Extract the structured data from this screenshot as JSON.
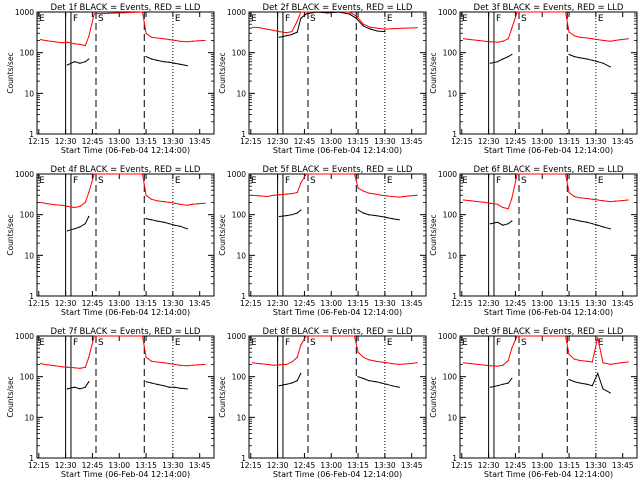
{
  "figure": {
    "xlabel": "Start Time (06-Feb-04 12:14:00)",
    "ylabel": "Counts/sec",
    "ytick_labels": [
      "1",
      "10",
      "100",
      "1000"
    ],
    "xtick_labels": [
      "12:15",
      "12:30",
      "12:45",
      "13:00",
      "13:15",
      "13:30",
      "13:45"
    ],
    "colors": {
      "events": "#000000",
      "lld": "#ff0000",
      "axes": "#000000",
      "background": "#ffffff"
    },
    "marker_letters": [
      "E",
      "F",
      "S",
      "E"
    ]
  },
  "chart_data": [
    {
      "type": "line",
      "title": "Det 1f BLACK = Events, RED = LLD",
      "scale": "log-y",
      "ylim": [
        1,
        1000
      ],
      "x": [
        "12:16",
        "12:20",
        "12:24",
        "12:28",
        "12:31",
        "12:35",
        "12:38",
        "12:41",
        "12:43",
        "12:46",
        "13:13",
        "13:15",
        "13:18",
        "13:21",
        "13:25",
        "13:28",
        "13:31",
        "13:34",
        "13:38",
        "13:41",
        "13:44",
        "13:48"
      ],
      "series": [
        {
          "name": "LLD",
          "values": [
            210,
            195,
            185,
            175,
            180,
            165,
            160,
            150,
            250,
            900,
            1000,
            300,
            240,
            230,
            220,
            210,
            200,
            190,
            185,
            190,
            195,
            200
          ]
        },
        {
          "name": "Events",
          "values": [
            null,
            null,
            null,
            null,
            50,
            60,
            55,
            60,
            70,
            null,
            null,
            80,
            70,
            65,
            60,
            58,
            55,
            52,
            48,
            null,
            null,
            null
          ]
        }
      ],
      "vlines": {
        "solid": [
          "12:30",
          "12:33"
        ],
        "dashed": [
          "12:47",
          "13:14"
        ],
        "dotted": [
          "12:14",
          "13:30"
        ]
      }
    },
    {
      "type": "line",
      "title": "Det 2f BLACK = Events, RED = LLD",
      "scale": "log-y",
      "ylim": [
        1,
        1000
      ],
      "x": [
        "12:16",
        "12:20",
        "12:24",
        "12:28",
        "12:31",
        "12:35",
        "12:38",
        "12:41",
        "12:43",
        "12:46",
        "12:52",
        "12:58",
        "13:04",
        "13:10",
        "13:14",
        "13:18",
        "13:22",
        "13:26",
        "13:30",
        "13:35",
        "13:40",
        "13:48"
      ],
      "series": [
        {
          "name": "LLD",
          "values": [
            420,
            410,
            380,
            350,
            330,
            310,
            330,
            600,
            1000,
            1000,
            1000,
            950,
            1000,
            1000,
            800,
            500,
            420,
            400,
            380,
            390,
            400,
            410
          ]
        },
        {
          "name": "Events",
          "values": [
            null,
            null,
            null,
            null,
            240,
            260,
            280,
            320,
            700,
            900,
            1000,
            950,
            1000,
            900,
            700,
            450,
            380,
            340,
            330,
            null,
            null,
            null
          ]
        }
      ],
      "vlines": {
        "solid": [
          "12:30",
          "12:33"
        ],
        "dashed": [
          "12:47",
          "13:14"
        ],
        "dotted": [
          "12:14",
          "13:30"
        ]
      }
    },
    {
      "type": "line",
      "title": "Det 3f BLACK = Events, RED = LLD",
      "scale": "log-y",
      "ylim": [
        1,
        1000
      ],
      "x": [
        "12:16",
        "12:20",
        "12:24",
        "12:28",
        "12:31",
        "12:35",
        "12:38",
        "12:41",
        "12:43",
        "12:46",
        "13:13",
        "13:15",
        "13:18",
        "13:21",
        "13:25",
        "13:28",
        "13:31",
        "13:34",
        "13:38",
        "13:41",
        "13:44",
        "13:48"
      ],
      "series": [
        {
          "name": "LLD",
          "values": [
            220,
            210,
            200,
            190,
            185,
            180,
            190,
            220,
            400,
            1000,
            1000,
            320,
            260,
            240,
            230,
            220,
            210,
            200,
            190,
            200,
            210,
            220
          ]
        },
        {
          "name": "Events",
          "values": [
            null,
            null,
            null,
            null,
            55,
            60,
            70,
            80,
            90,
            null,
            null,
            90,
            80,
            75,
            70,
            65,
            60,
            55,
            45,
            null,
            null,
            null
          ]
        }
      ],
      "vlines": {
        "solid": [
          "12:30",
          "12:33"
        ],
        "dashed": [
          "12:47",
          "13:14"
        ],
        "dotted": [
          "12:14",
          "13:30"
        ]
      }
    },
    {
      "type": "line",
      "title": "Det 4f BLACK = Events, RED = LLD",
      "scale": "log-y",
      "ylim": [
        1,
        1000
      ],
      "x": [
        "12:16",
        "12:20",
        "12:24",
        "12:28",
        "12:31",
        "12:35",
        "12:38",
        "12:41",
        "12:43",
        "12:46",
        "13:13",
        "13:15",
        "13:18",
        "13:21",
        "13:25",
        "13:28",
        "13:31",
        "13:34",
        "13:38",
        "13:41",
        "13:44",
        "13:48"
      ],
      "series": [
        {
          "name": "LLD",
          "values": [
            200,
            185,
            175,
            170,
            160,
            150,
            160,
            200,
            350,
            1000,
            1000,
            300,
            240,
            220,
            210,
            200,
            190,
            180,
            170,
            180,
            185,
            190
          ]
        },
        {
          "name": "Events",
          "values": [
            null,
            null,
            null,
            null,
            40,
            45,
            50,
            60,
            90,
            null,
            null,
            80,
            75,
            70,
            65,
            60,
            55,
            52,
            45,
            null,
            null,
            null
          ]
        }
      ],
      "vlines": {
        "solid": [
          "12:30",
          "12:33"
        ],
        "dashed": [
          "12:47",
          "13:14"
        ],
        "dotted": [
          "12:14",
          "13:30"
        ]
      }
    },
    {
      "type": "line",
      "title": "Det 5f BLACK = Events, RED = LLD",
      "scale": "log-y",
      "ylim": [
        1,
        1000
      ],
      "x": [
        "12:16",
        "12:20",
        "12:24",
        "12:28",
        "12:31",
        "12:35",
        "12:38",
        "12:41",
        "12:43",
        "12:46",
        "13:13",
        "13:15",
        "13:18",
        "13:21",
        "13:25",
        "13:28",
        "13:31",
        "13:34",
        "13:38",
        "13:41",
        "13:44",
        "13:48"
      ],
      "series": [
        {
          "name": "LLD",
          "values": [
            300,
            290,
            280,
            300,
            310,
            320,
            330,
            350,
            600,
            1000,
            1000,
            450,
            380,
            340,
            320,
            300,
            290,
            280,
            270,
            280,
            290,
            300
          ]
        },
        {
          "name": "Events",
          "values": [
            null,
            null,
            null,
            null,
            90,
            95,
            100,
            110,
            130,
            null,
            null,
            130,
            110,
            100,
            95,
            90,
            85,
            80,
            75,
            null,
            null,
            null
          ]
        }
      ],
      "vlines": {
        "solid": [
          "12:30",
          "12:33"
        ],
        "dashed": [
          "12:47",
          "13:14"
        ],
        "dotted": [
          "12:14",
          "13:30"
        ]
      }
    },
    {
      "type": "line",
      "title": "Det 6f BLACK = Events, RED = LLD",
      "scale": "log-y",
      "ylim": [
        1,
        1000
      ],
      "x": [
        "12:16",
        "12:20",
        "12:24",
        "12:28",
        "12:31",
        "12:35",
        "12:38",
        "12:41",
        "12:43",
        "12:46",
        "13:13",
        "13:15",
        "13:18",
        "13:21",
        "13:25",
        "13:28",
        "13:31",
        "13:34",
        "13:38",
        "13:41",
        "13:44",
        "13:48"
      ],
      "series": [
        {
          "name": "LLD",
          "values": [
            230,
            220,
            210,
            200,
            190,
            180,
            150,
            140,
            250,
            1000,
            1000,
            350,
            280,
            260,
            250,
            240,
            230,
            220,
            210,
            215,
            220,
            230
          ]
        },
        {
          "name": "Events",
          "values": [
            null,
            null,
            null,
            null,
            60,
            65,
            55,
            60,
            70,
            null,
            null,
            80,
            75,
            70,
            65,
            60,
            55,
            50,
            45,
            null,
            null,
            null
          ]
        }
      ],
      "vlines": {
        "solid": [
          "12:30",
          "12:33"
        ],
        "dashed": [
          "12:47",
          "13:14"
        ],
        "dotted": [
          "12:14",
          "13:30"
        ]
      }
    },
    {
      "type": "line",
      "title": "Det 7f BLACK = Events, RED = LLD",
      "scale": "log-y",
      "ylim": [
        1,
        1000
      ],
      "x": [
        "12:16",
        "12:20",
        "12:24",
        "12:28",
        "12:31",
        "12:35",
        "12:38",
        "12:41",
        "12:43",
        "12:46",
        "13:13",
        "13:15",
        "13:18",
        "13:21",
        "13:25",
        "13:28",
        "13:31",
        "13:34",
        "13:38",
        "13:41",
        "13:44",
        "13:48"
      ],
      "series": [
        {
          "name": "LLD",
          "values": [
            210,
            195,
            185,
            175,
            170,
            165,
            160,
            170,
            300,
            1000,
            1000,
            300,
            240,
            230,
            220,
            210,
            200,
            190,
            185,
            190,
            195,
            200
          ]
        },
        {
          "name": "Events",
          "values": [
            null,
            null,
            null,
            null,
            50,
            55,
            50,
            55,
            75,
            null,
            null,
            75,
            70,
            65,
            60,
            55,
            55,
            52,
            50,
            null,
            null,
            null
          ]
        }
      ],
      "vlines": {
        "solid": [
          "12:30",
          "12:33"
        ],
        "dashed": [
          "12:47",
          "13:14"
        ],
        "dotted": [
          "12:14",
          "13:30"
        ]
      }
    },
    {
      "type": "line",
      "title": "Det 8f BLACK = Events, RED = LLD",
      "scale": "log-y",
      "ylim": [
        1,
        1000
      ],
      "x": [
        "12:16",
        "12:20",
        "12:24",
        "12:28",
        "12:31",
        "12:35",
        "12:38",
        "12:41",
        "12:43",
        "12:46",
        "13:13",
        "13:15",
        "13:18",
        "13:21",
        "13:25",
        "13:28",
        "13:31",
        "13:34",
        "13:38",
        "13:41",
        "13:44",
        "13:48"
      ],
      "series": [
        {
          "name": "LLD",
          "values": [
            220,
            210,
            200,
            190,
            195,
            200,
            230,
            300,
            600,
            1000,
            1000,
            400,
            300,
            260,
            240,
            230,
            220,
            210,
            200,
            205,
            210,
            220
          ]
        },
        {
          "name": "Events",
          "values": [
            null,
            null,
            null,
            null,
            60,
            65,
            70,
            80,
            120,
            null,
            null,
            100,
            90,
            80,
            75,
            70,
            65,
            60,
            55,
            null,
            null,
            null
          ]
        }
      ],
      "vlines": {
        "solid": [
          "12:30",
          "12:33"
        ],
        "dashed": [
          "12:47",
          "13:14"
        ],
        "dotted": [
          "12:14",
          "13:30"
        ]
      }
    },
    {
      "type": "line",
      "title": "Det 9f BLACK = Events, RED = LLD",
      "scale": "log-y",
      "ylim": [
        1,
        1000
      ],
      "x": [
        "12:16",
        "12:20",
        "12:24",
        "12:28",
        "12:31",
        "12:35",
        "12:38",
        "12:41",
        "12:43",
        "12:46",
        "13:13",
        "13:15",
        "13:18",
        "13:21",
        "13:25",
        "13:28",
        "13:31",
        "13:34",
        "13:38",
        "13:41",
        "13:44",
        "13:48"
      ],
      "series": [
        {
          "name": "LLD",
          "values": [
            220,
            210,
            200,
            190,
            185,
            180,
            190,
            250,
            500,
            1000,
            1000,
            350,
            270,
            250,
            240,
            230,
            900,
            220,
            200,
            210,
            220,
            230
          ]
        },
        {
          "name": "Events",
          "values": [
            null,
            null,
            null,
            null,
            55,
            60,
            65,
            70,
            90,
            null,
            null,
            85,
            75,
            70,
            65,
            60,
            120,
            50,
            40,
            null,
            null,
            null
          ]
        }
      ],
      "vlines": {
        "solid": [
          "12:30",
          "12:33"
        ],
        "dashed": [
          "12:47",
          "13:14"
        ],
        "dotted": [
          "12:14",
          "13:30"
        ]
      }
    }
  ]
}
